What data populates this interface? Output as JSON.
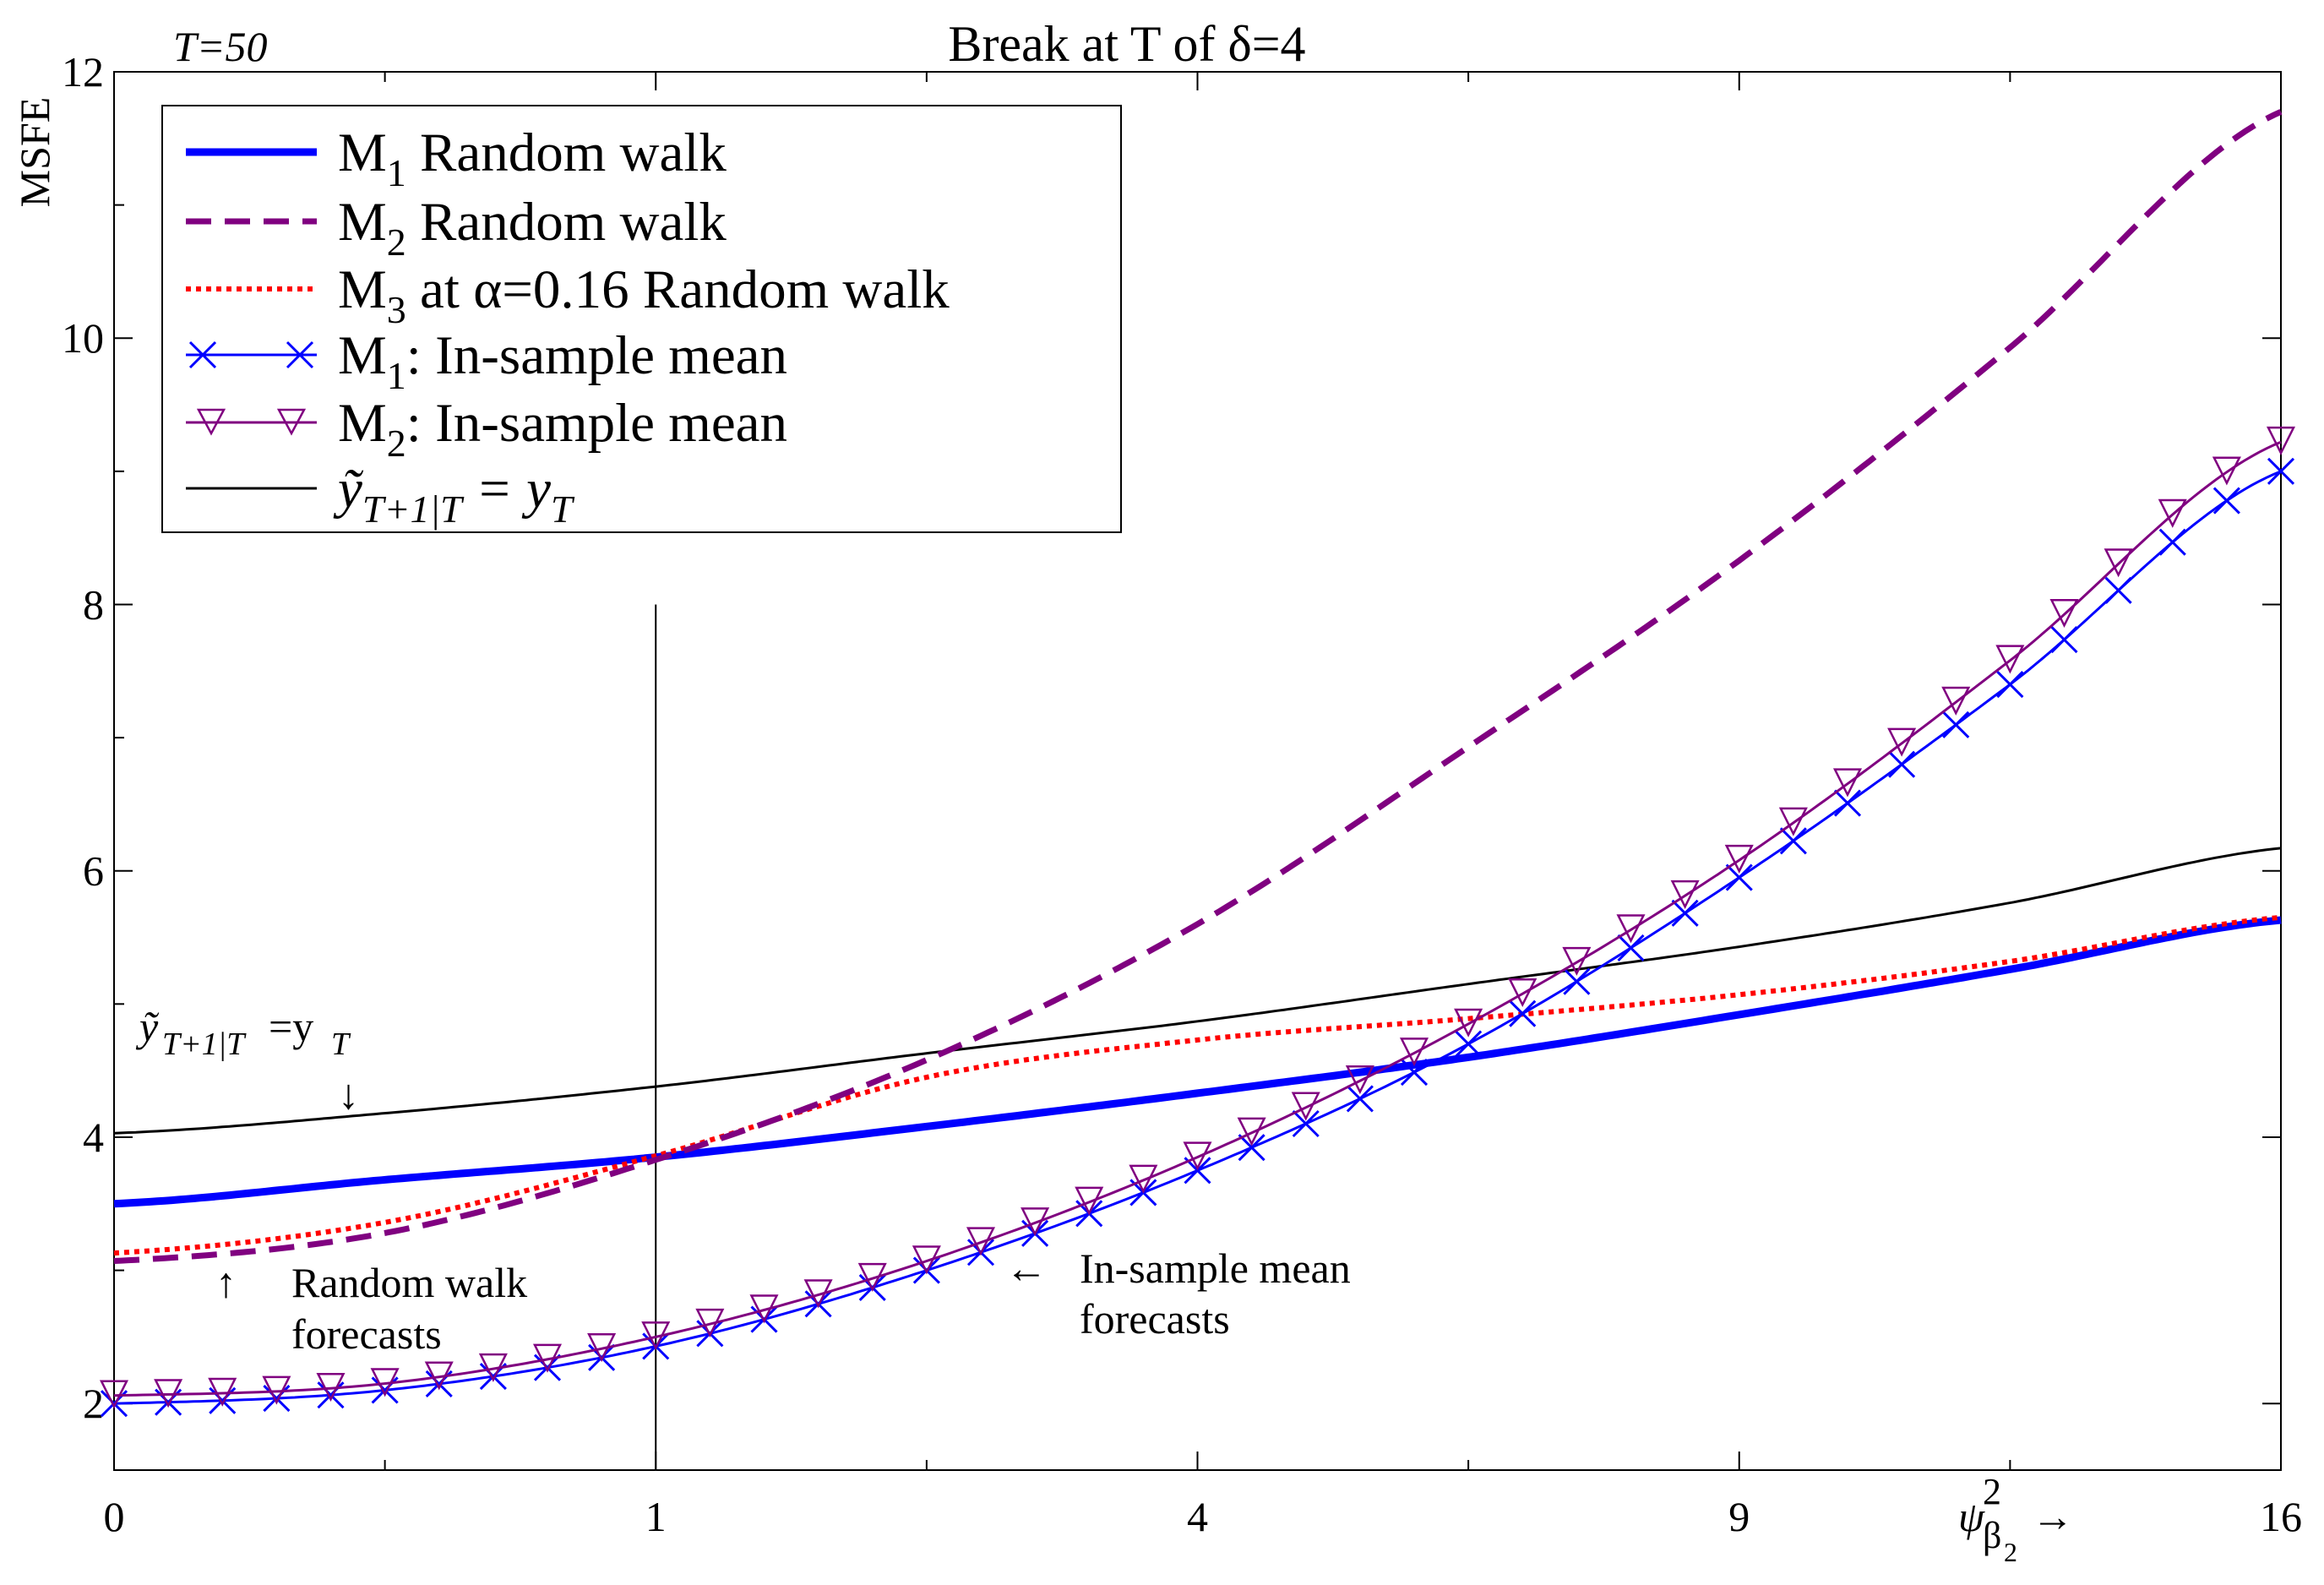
{
  "chart_data": {
    "type": "line",
    "title": "Break at T of δ=4",
    "corner_label": "T=50",
    "ylabel": "MSFE",
    "xlabel": "ψ",
    "xlabel_superscript": "2",
    "xlabel_subscript": "β",
    "xlabel_subsubscript": "2",
    "xlabel_arrow": "→",
    "x_scale": "sqrt",
    "xlim": [
      0,
      16
    ],
    "ylim": [
      1.5,
      12
    ],
    "x_ticks": [
      {
        "v": 0,
        "label": "0"
      },
      {
        "v": 1,
        "label": "1"
      },
      {
        "v": 4,
        "label": "4"
      },
      {
        "v": 9,
        "label": "9"
      },
      {
        "v": 16,
        "label": "16"
      }
    ],
    "x_minor_ticks": [
      0.25,
      2.25,
      6.25,
      12.25
    ],
    "y_ticks": [
      {
        "v": 2,
        "label": "2"
      },
      {
        "v": 4,
        "label": "4"
      },
      {
        "v": 6,
        "label": "6"
      },
      {
        "v": 8,
        "label": "8"
      },
      {
        "v": 10,
        "label": "10"
      },
      {
        "v": 12,
        "label": "12"
      }
    ],
    "grid": false,
    "legend_position": "top-left",
    "legend": [
      {
        "main": "M",
        "sub": "1",
        "rest": " Random walk"
      },
      {
        "main": "M",
        "sub": "2",
        "rest": " Random walk"
      },
      {
        "main": "M",
        "sub": "3",
        "rest": " at α=0.16 Random walk"
      },
      {
        "main": "M",
        "sub": "1",
        "rest": ": In-sample mean"
      },
      {
        "main": "M",
        "sub": "2",
        "rest": ": In-sample mean"
      },
      {
        "main": "ỹ",
        "sub": "T+1|T",
        "rest": " = y",
        "rest_sub": "T"
      }
    ],
    "series": [
      {
        "name": "M1 Random walk",
        "color": "#0000ff",
        "style": "solid-thick",
        "marker": "none",
        "x": [
          0,
          0.25,
          1,
          2.25,
          4,
          6.25,
          9,
          12.25,
          16
        ],
        "y": [
          3.5,
          3.68,
          3.85,
          4.08,
          4.33,
          4.6,
          4.92,
          5.26,
          5.63
        ]
      },
      {
        "name": "M2 Random walk",
        "color": "#800080",
        "style": "dashed",
        "marker": "none",
        "x": [
          0,
          0.25,
          1,
          2.25,
          4,
          6.25,
          9,
          12.25,
          16
        ],
        "y": [
          3.07,
          3.28,
          3.83,
          4.58,
          5.6,
          6.93,
          8.33,
          9.93,
          11.7
        ]
      },
      {
        "name": "M3 at α=0.16 Random walk",
        "color": "#ff0000",
        "style": "dotted",
        "marker": "none",
        "x": [
          0,
          0.25,
          1,
          2.25,
          4,
          6.25,
          9,
          12.25,
          16
        ],
        "y": [
          3.13,
          3.36,
          3.86,
          4.45,
          4.73,
          4.89,
          5.07,
          5.32,
          5.65
        ]
      },
      {
        "name": "M1: In-sample mean",
        "color": "#0000ff",
        "style": "solid",
        "marker": "x",
        "x": [
          0,
          0.25,
          1,
          2.25,
          4,
          6.25,
          9,
          12.25,
          16
        ],
        "y": [
          2.0,
          2.1,
          2.43,
          3.0,
          3.75,
          4.7,
          5.95,
          7.4,
          9.0
        ]
      },
      {
        "name": "M2: In-sample mean",
        "color": "#800080",
        "style": "solid",
        "marker": "triangle-down",
        "x": [
          0,
          0.25,
          1,
          2.25,
          4,
          6.25,
          9,
          12.25,
          16
        ],
        "y": [
          2.06,
          2.15,
          2.5,
          3.07,
          3.85,
          4.85,
          6.08,
          7.58,
          9.22
        ]
      },
      {
        "name": "ỹ_{T+1|T} = y_T",
        "color": "#000000",
        "style": "solid",
        "marker": "none",
        "x": [
          0,
          0.25,
          1,
          2.25,
          4,
          6.25,
          9,
          12.25,
          16
        ],
        "y": [
          4.03,
          4.18,
          4.38,
          4.63,
          4.87,
          5.15,
          5.43,
          5.76,
          6.17
        ]
      }
    ],
    "vertical_line_at_x": 1,
    "vertical_line_top_y": 8,
    "annotations": [
      {
        "text_main": "ỹ",
        "text_sub": "T+1|T",
        "text_rest": "=y",
        "text_rest_sub": "T",
        "arrow": "↓"
      },
      {
        "arrow": "↑",
        "lines": [
          "Random walk",
          "forecasts"
        ]
      },
      {
        "arrow": "←",
        "lines": [
          "In-sample mean",
          "forecasts"
        ]
      }
    ]
  }
}
